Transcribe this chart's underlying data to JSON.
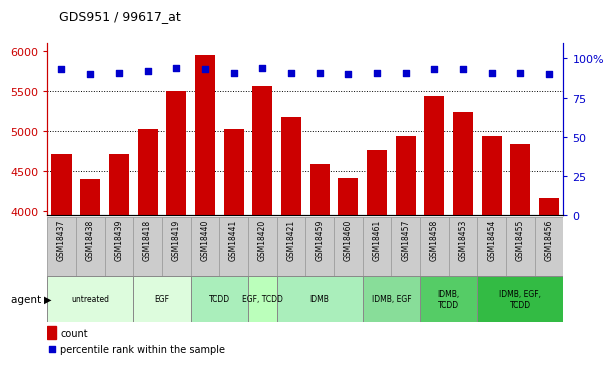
{
  "title": "GDS951 / 99617_at",
  "samples": [
    "GSM18437",
    "GSM18438",
    "GSM18439",
    "GSM18418",
    "GSM18419",
    "GSM18440",
    "GSM18441",
    "GSM18420",
    "GSM18421",
    "GSM18459",
    "GSM18460",
    "GSM18461",
    "GSM18457",
    "GSM18458",
    "GSM18453",
    "GSM18454",
    "GSM18455",
    "GSM18456"
  ],
  "counts": [
    4710,
    4400,
    4710,
    5020,
    5500,
    5950,
    5020,
    5560,
    5170,
    4590,
    4420,
    4760,
    4940,
    5440,
    5240,
    4940,
    4840,
    4170
  ],
  "percentiles": [
    93,
    90,
    91,
    92,
    94,
    93,
    91,
    94,
    91,
    91,
    90,
    91,
    91,
    93,
    93,
    91,
    91,
    90
  ],
  "bar_color": "#cc0000",
  "dot_color": "#0000cc",
  "ylim_left": [
    3950,
    6100
  ],
  "ylim_right": [
    0,
    110
  ],
  "yticks_left": [
    4000,
    4500,
    5000,
    5500,
    6000
  ],
  "yticks_right": [
    0,
    25,
    50,
    75,
    100
  ],
  "yticklabels_right": [
    "0",
    "25",
    "50",
    "75",
    "100%"
  ],
  "grid_values": [
    4500,
    5000,
    5500
  ],
  "agent_groups": [
    {
      "label": "untreated",
      "start": 0,
      "end": 3,
      "color": "#ddfcdd"
    },
    {
      "label": "EGF",
      "start": 3,
      "end": 5,
      "color": "#ddfcdd"
    },
    {
      "label": "TCDD",
      "start": 5,
      "end": 7,
      "color": "#aaeebb"
    },
    {
      "label": "EGF, TCDD",
      "start": 7,
      "end": 8,
      "color": "#bbffbb"
    },
    {
      "label": "IDMB",
      "start": 8,
      "end": 11,
      "color": "#aaeebb"
    },
    {
      "label": "IDMB, EGF",
      "start": 11,
      "end": 13,
      "color": "#88dd99"
    },
    {
      "label": "IDMB,\nTCDD",
      "start": 13,
      "end": 15,
      "color": "#55cc66"
    },
    {
      "label": "IDMB, EGF,\nTCDD",
      "start": 15,
      "end": 18,
      "color": "#33bb44"
    }
  ],
  "background_color": "#ffffff",
  "gsm_bg_color": "#cccccc",
  "legend_count_color": "#cc0000",
  "legend_dot_color": "#0000cc"
}
